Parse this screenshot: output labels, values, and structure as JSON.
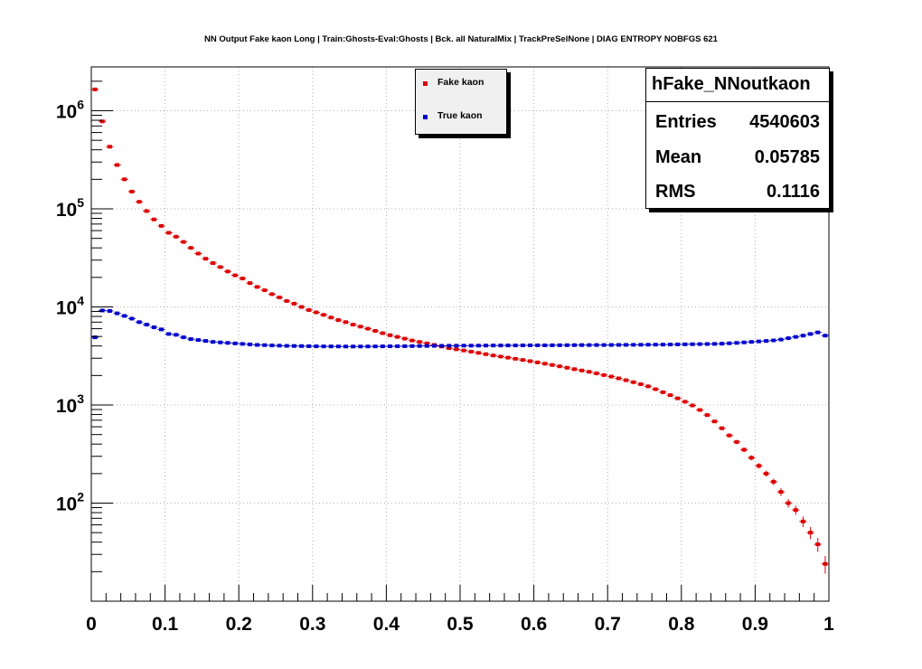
{
  "chart_data": {
    "type": "scatter",
    "title": "NN Output Fake kaon Long | Train:Ghosts-Eval:Ghosts | Bck. all NaturalMix | TrackPreSelNone | DIAG ENTROPY NOBFGS 621",
    "xlabel": "",
    "ylabel": "",
    "xlim": [
      0,
      1
    ],
    "ylim": [
      10,
      2800000
    ],
    "yscale": "log",
    "grid": true,
    "legend_position": "top-center",
    "x_ticks": [
      "0",
      "0.1",
      "0.2",
      "0.3",
      "0.4",
      "0.5",
      "0.6",
      "0.7",
      "0.8",
      "0.9",
      "1"
    ],
    "y_ticks": [
      {
        "base": "10",
        "exp": "2",
        "value": 100
      },
      {
        "base": "10",
        "exp": "3",
        "value": 1000
      },
      {
        "base": "10",
        "exp": "4",
        "value": 10000
      },
      {
        "base": "10",
        "exp": "5",
        "value": 100000
      },
      {
        "base": "10",
        "exp": "6",
        "value": 1000000
      }
    ],
    "bin_width": 0.01,
    "x": [
      0.005,
      0.015,
      0.025,
      0.035,
      0.045,
      0.055,
      0.065,
      0.075,
      0.085,
      0.095,
      0.105,
      0.115,
      0.125,
      0.135,
      0.145,
      0.155,
      0.165,
      0.175,
      0.185,
      0.195,
      0.205,
      0.215,
      0.225,
      0.235,
      0.245,
      0.255,
      0.265,
      0.275,
      0.285,
      0.295,
      0.305,
      0.315,
      0.325,
      0.335,
      0.345,
      0.355,
      0.365,
      0.375,
      0.385,
      0.395,
      0.405,
      0.415,
      0.425,
      0.435,
      0.445,
      0.455,
      0.465,
      0.475,
      0.485,
      0.495,
      0.505,
      0.515,
      0.525,
      0.535,
      0.545,
      0.555,
      0.565,
      0.575,
      0.585,
      0.595,
      0.605,
      0.615,
      0.625,
      0.635,
      0.645,
      0.655,
      0.665,
      0.675,
      0.685,
      0.695,
      0.705,
      0.715,
      0.725,
      0.735,
      0.745,
      0.755,
      0.765,
      0.775,
      0.785,
      0.795,
      0.805,
      0.815,
      0.825,
      0.835,
      0.845,
      0.855,
      0.865,
      0.875,
      0.885,
      0.895,
      0.905,
      0.915,
      0.925,
      0.935,
      0.945,
      0.955,
      0.965,
      0.975,
      0.985,
      0.995
    ],
    "series": [
      {
        "name": "Fake kaon",
        "color": "#dd0000",
        "values": [
          1650000,
          780000,
          430000,
          280000,
          200000,
          150000,
          118000,
          95000,
          78000,
          67000,
          57000,
          52000,
          46000,
          40000,
          35000,
          31000,
          28000,
          25500,
          23000,
          21000,
          19500,
          17500,
          16000,
          14800,
          13500,
          12500,
          11500,
          10800,
          10000,
          9300,
          8800,
          8300,
          7800,
          7350,
          7000,
          6600,
          6300,
          6000,
          5700,
          5400,
          5150,
          4950,
          4750,
          4550,
          4400,
          4250,
          4100,
          3950,
          3800,
          3700,
          3600,
          3500,
          3400,
          3300,
          3200,
          3120,
          3040,
          2960,
          2880,
          2800,
          2720,
          2640,
          2560,
          2480,
          2400,
          2320,
          2250,
          2180,
          2100,
          2020,
          1950,
          1870,
          1790,
          1710,
          1630,
          1550,
          1450,
          1350,
          1260,
          1170,
          1080,
          990,
          890,
          790,
          680,
          580,
          490,
          420,
          350,
          290,
          240,
          200,
          165,
          130,
          100,
          85,
          65,
          50,
          38,
          24
        ]
      },
      {
        "name": "True kaon",
        "color": "#0000cc",
        "values": [
          4900,
          9200,
          9100,
          8600,
          8100,
          7600,
          7000,
          6600,
          6200,
          5900,
          5300,
          5200,
          4900,
          4700,
          4600,
          4500,
          4400,
          4350,
          4300,
          4250,
          4200,
          4150,
          4100,
          4080,
          4050,
          4030,
          4010,
          4000,
          3990,
          3980,
          3970,
          3960,
          3960,
          3955,
          3950,
          3950,
          3950,
          3955,
          3960,
          3965,
          3970,
          3975,
          3980,
          3990,
          4000,
          4005,
          4010,
          4015,
          4020,
          4025,
          4030,
          4030,
          4035,
          4040,
          4045,
          4045,
          4050,
          4050,
          4055,
          4060,
          4060,
          4060,
          4065,
          4070,
          4075,
          4080,
          4085,
          4085,
          4090,
          4090,
          4095,
          4100,
          4105,
          4110,
          4115,
          4120,
          4125,
          4130,
          4140,
          4150,
          4160,
          4170,
          4180,
          4190,
          4200,
          4220,
          4260,
          4300,
          4350,
          4400,
          4450,
          4500,
          4560,
          4650,
          4800,
          4950,
          5100,
          5300,
          5500,
          5100
        ]
      }
    ]
  },
  "stats": {
    "name": "hFake_NNoutkaon",
    "entries_label": "Entries",
    "entries_value": "4540603",
    "mean_label": "Mean",
    "mean_value": "0.05785",
    "rms_label": "RMS",
    "rms_value": "0.1116"
  }
}
